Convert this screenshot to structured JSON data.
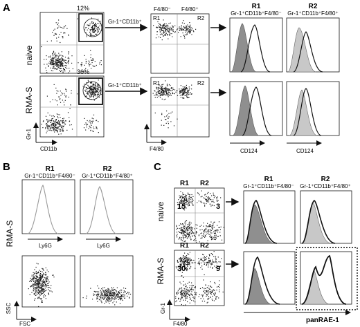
{
  "panel_a": {
    "letter": "A",
    "rows": [
      "naive",
      "RMA-S"
    ],
    "gate_percents": [
      "12%",
      "36%"
    ],
    "arrow_label": "Gr-1⁺CD11b⁺",
    "f4_minus": "F4/80⁻",
    "f4_plus": "F4/80⁺",
    "r1": "R1",
    "r2": "R2",
    "r1_sub": "Gr-1⁺CD11b⁺F4/80⁻",
    "r2_sub": "Gr-1⁺CD11b⁺F4/80⁺",
    "y_axis": "Gr-1",
    "x_axis_1": "CD11b",
    "x_axis_2": "F4/80",
    "x_axis_3": "CD124",
    "x_axis_4": "CD124"
  },
  "panel_b": {
    "letter": "B",
    "row": "RMA-S",
    "r1": "R1",
    "r2": "R2",
    "r1_sub": "Gr-1⁺CD11b⁺F4/80⁻",
    "r2_sub": "Gr-1⁺CD11b⁺F4/80⁺",
    "hist_x_1": "Ly6G",
    "hist_x_2": "Ly6G",
    "y_axis": "SSC",
    "x_axis": "FSC"
  },
  "panel_c": {
    "letter": "C",
    "rows": [
      "naive",
      "RMA-S"
    ],
    "r1": "R1",
    "r2": "R2",
    "r1_sub": "Gr-1⁺CD11b⁺F4/80⁻",
    "r2_sub": "Gr-1⁺CD11b⁺F4/80⁺",
    "naive_r1_value": "15",
    "naive_r2_value": "3",
    "rmas_r1_value": "30",
    "rmas_r2_value": "9",
    "y_axis": "Gr-1",
    "x_axis": "F4/80",
    "hist_x": "panRAE-1"
  },
  "colors": {
    "ink": "#111111",
    "dot": "#1a1a1a",
    "fill_dark": "#8f8f8f",
    "fill_light": "#c8c8c8"
  }
}
